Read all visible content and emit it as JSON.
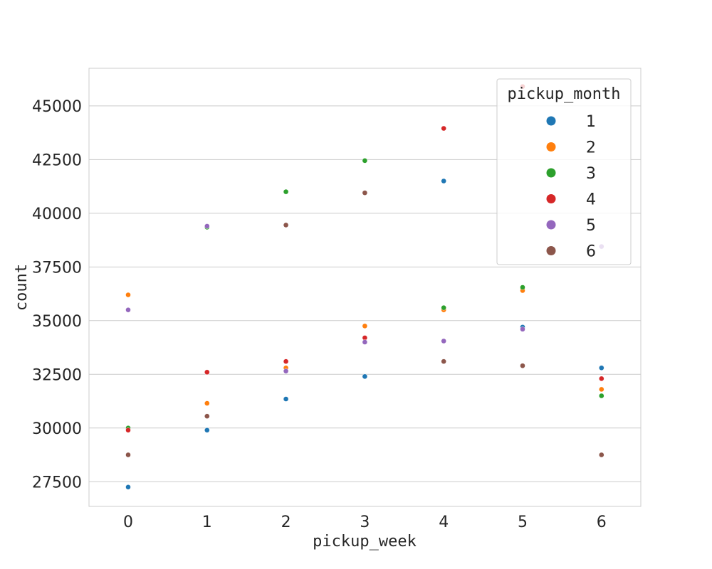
{
  "chart_data": {
    "type": "scatter",
    "xlabel": "pickup_week",
    "ylabel": "count",
    "x_categories": [
      0,
      1,
      2,
      3,
      4,
      5,
      6
    ],
    "x_tick_labels": [
      "0",
      "1",
      "2",
      "3",
      "4",
      "5",
      "6"
    ],
    "ylim": [
      26350,
      46750
    ],
    "y_ticks": [
      27500,
      30000,
      32500,
      35000,
      37500,
      40000,
      42500,
      45000
    ],
    "y_tick_labels": [
      "27500",
      "30000",
      "32500",
      "35000",
      "37500",
      "40000",
      "42500",
      "45000"
    ],
    "grid": "horizontal",
    "legend": {
      "title": "pickup_month",
      "placement": "top-right"
    },
    "series": [
      {
        "name": "1",
        "color": "#1f77b4",
        "values": [
          27250,
          29900,
          31350,
          32400,
          41500,
          34700,
          32800
        ]
      },
      {
        "name": "2",
        "color": "#ff7f0e",
        "values": [
          36200,
          31150,
          32800,
          34750,
          35500,
          36400,
          31800
        ]
      },
      {
        "name": "3",
        "color": "#2ca02c",
        "values": [
          30000,
          39350,
          41000,
          42450,
          35600,
          36550,
          31500
        ]
      },
      {
        "name": "4",
        "color": "#d62728",
        "values": [
          29900,
          32600,
          33100,
          34200,
          43950,
          45900,
          32300
        ]
      },
      {
        "name": "5",
        "color": "#9467bd",
        "values": [
          35500,
          39400,
          32650,
          34000,
          34050,
          34600,
          38450
        ]
      },
      {
        "name": "6",
        "color": "#8c564b",
        "values": [
          28750,
          30550,
          39450,
          40950,
          33100,
          32900,
          28750
        ]
      }
    ]
  }
}
